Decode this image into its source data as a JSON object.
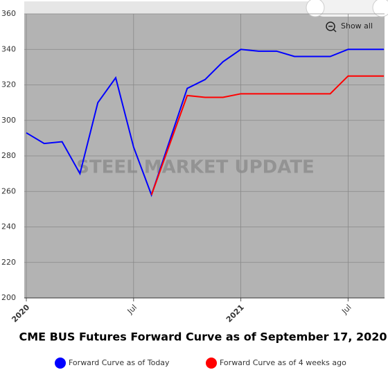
{
  "chart_data": {
    "type": "line",
    "title": "CME BUS Futures Forward Curve as of September 17, 2020",
    "watermark": "STEEL MARKET UPDATE",
    "button": "Show all",
    "x": [
      "2020-01",
      "2020-02",
      "2020-03",
      "2020-04",
      "2020-05",
      "2020-06",
      "2020-07",
      "2020-08",
      "2020-09",
      "2020-10",
      "2020-11",
      "2020-12",
      "2021-01",
      "2021-02",
      "2021-03",
      "2021-04",
      "2021-05",
      "2021-06",
      "2021-07",
      "2021-08",
      "2021-09"
    ],
    "series": [
      {
        "name": "Forward Curve as of Today",
        "color": "#0000ff",
        "values": [
          293,
          287,
          288,
          270,
          310,
          324,
          285,
          258,
          288,
          318,
          323,
          333,
          340,
          339,
          339,
          336,
          336,
          336,
          340,
          340,
          340
        ]
      },
      {
        "name": "Forward Curve as of 4 weeks ago",
        "color": "#ff0000",
        "values": [
          null,
          null,
          null,
          null,
          null,
          null,
          null,
          258,
          286,
          314,
          313,
          313,
          315,
          315,
          315,
          315,
          315,
          315,
          325,
          325,
          325
        ]
      }
    ],
    "xlim": [
      "2020-01",
      "2021-09"
    ],
    "xticks": [
      {
        "value": "2020-01",
        "label": "2020"
      },
      {
        "value": "2020-07",
        "label": "Jul"
      },
      {
        "value": "2021-01",
        "label": "2021"
      },
      {
        "value": "2021-07",
        "label": "Jul"
      }
    ],
    "ylim": [
      200,
      360
    ],
    "yticks": [
      200,
      220,
      240,
      260,
      280,
      300,
      320,
      340,
      360
    ],
    "grid": true
  }
}
